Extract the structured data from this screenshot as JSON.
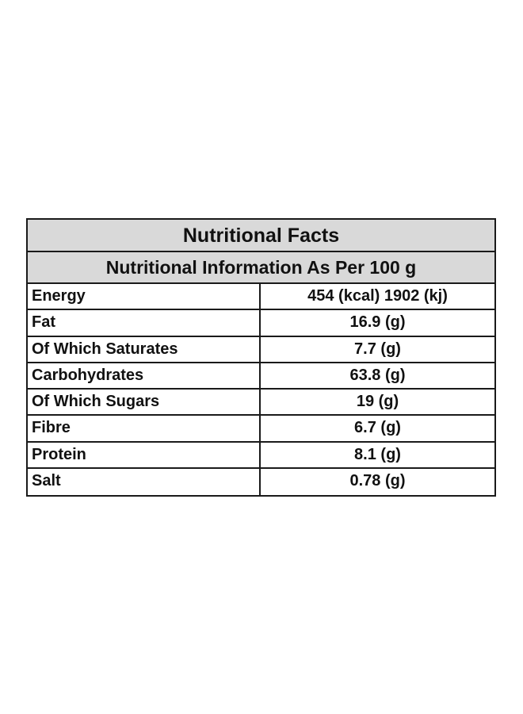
{
  "table": {
    "title": "Nutritional Facts",
    "subtitle": "Nutritional Information As Per 100 g",
    "rows": [
      {
        "label": "Energy",
        "value": "454 (kcal) 1902 (kj)"
      },
      {
        "label": "Fat",
        "value": "16.9 (g)"
      },
      {
        "label": "Of Which Saturates",
        "value": "7.7 (g)"
      },
      {
        "label": "Carbohydrates",
        "value": "63.8 (g)"
      },
      {
        "label": "Of Which Sugars",
        "value": "19 (g)"
      },
      {
        "label": "Fibre",
        "value": "6.7 (g)"
      },
      {
        "label": "Protein",
        "value": "8.1 (g)"
      },
      {
        "label": "Salt",
        "value": "0.78 (g)"
      }
    ]
  },
  "colors": {
    "header_background": "#d9d9d9",
    "border": "#1a1a1a",
    "text": "#111111"
  }
}
